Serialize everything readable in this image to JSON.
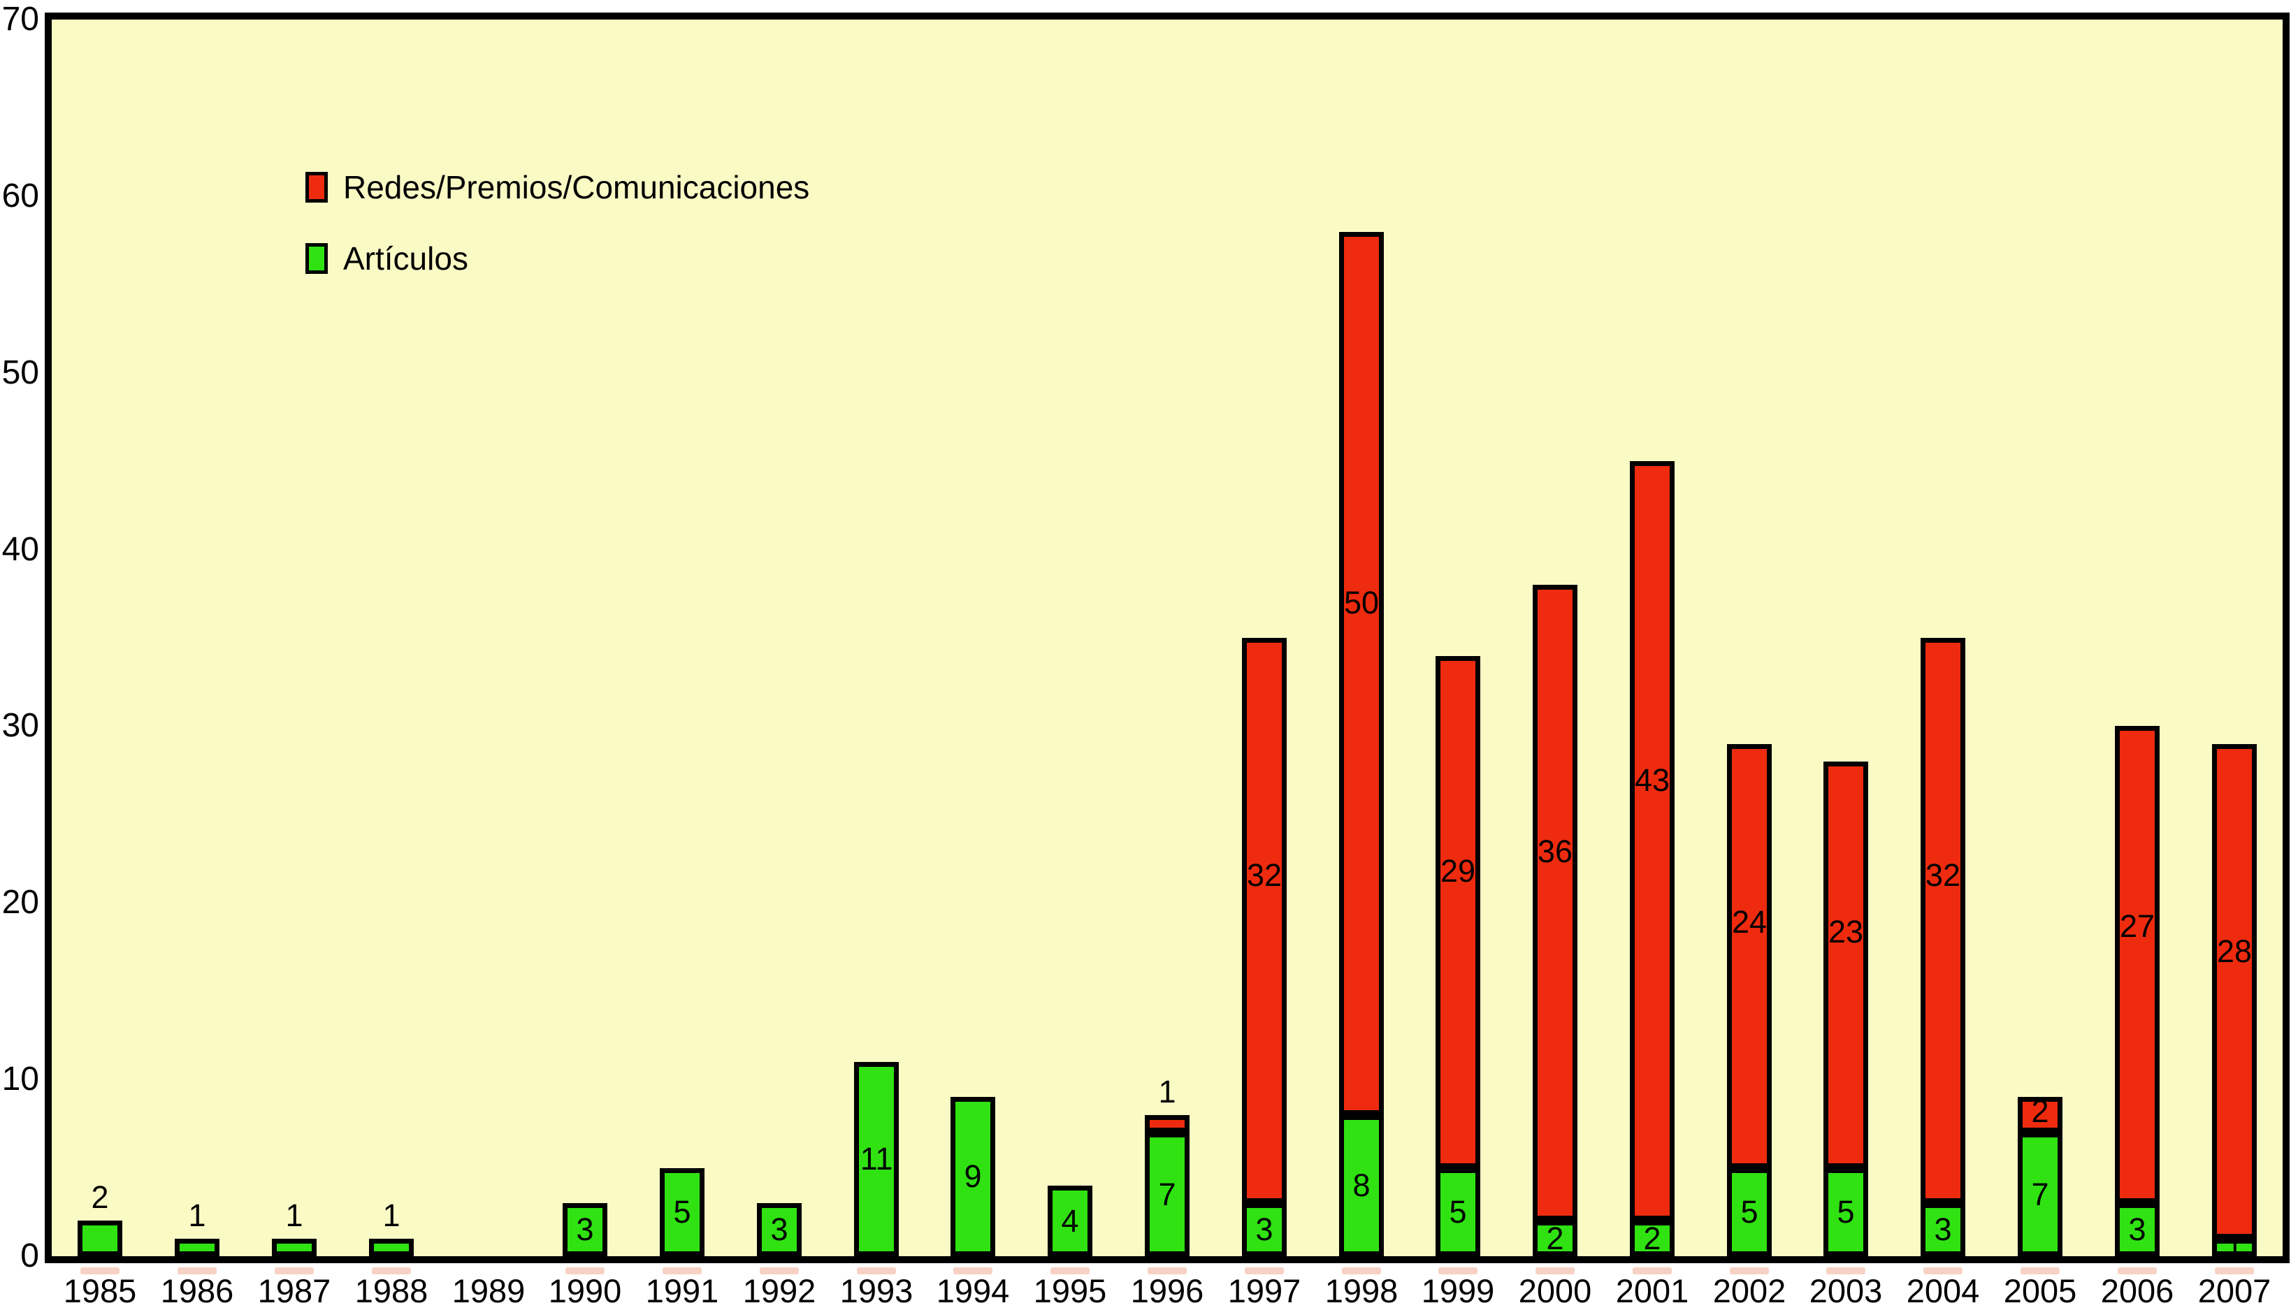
{
  "colors": {
    "page_background": "#ffffff",
    "plot_background": "#fafac5",
    "bar_green": "#30e212",
    "bar_red": "#ee2b0f",
    "outline": "#000000",
    "under_tick_pink": "#f7d2c4",
    "text": "#000000"
  },
  "legend": {
    "items": [
      {
        "label": "Redes/Premios/Comunicaciones",
        "color_key": "bar_red",
        "swatch": "red-legend-swatch"
      },
      {
        "label": "Artículos",
        "color_key": "bar_green",
        "swatch": "green-legend-swatch"
      }
    ]
  },
  "y_axis": {
    "min": 0,
    "max": 70,
    "ticks": [
      0,
      10,
      20,
      30,
      40,
      50,
      60,
      70
    ]
  },
  "chart_data": {
    "type": "bar",
    "stacked": true,
    "title": "",
    "xlabel": "",
    "ylabel": "",
    "ylim": [
      0,
      70
    ],
    "grid": false,
    "legend_position": "top-left-inside",
    "categories": [
      "1985",
      "1986",
      "1987",
      "1988",
      "1989",
      "1990",
      "1991",
      "1992",
      "1993",
      "1994",
      "1995",
      "1996",
      "1997",
      "1998",
      "1999",
      "2000",
      "2001",
      "2002",
      "2003",
      "2004",
      "2005",
      "2006",
      "2007"
    ],
    "series": [
      {
        "name": "Artículos",
        "color": "#30e212",
        "values": [
          2,
          1,
          1,
          1,
          0,
          3,
          5,
          3,
          11,
          9,
          4,
          7,
          3,
          8,
          5,
          2,
          2,
          5,
          5,
          3,
          7,
          3,
          1
        ]
      },
      {
        "name": "Redes/Premios/Comunicaciones",
        "color": "#ee2b0f",
        "values": [
          0,
          0,
          0,
          0,
          0,
          0,
          0,
          0,
          0,
          0,
          0,
          1,
          32,
          50,
          29,
          36,
          43,
          24,
          23,
          32,
          2,
          27,
          28
        ]
      }
    ],
    "totals": [
      2,
      1,
      1,
      1,
      0,
      3,
      5,
      3,
      11,
      9,
      4,
      8,
      35,
      58,
      34,
      38,
      45,
      29,
      28,
      35,
      9,
      30,
      29
    ],
    "bar_value_labels_shown": true
  }
}
